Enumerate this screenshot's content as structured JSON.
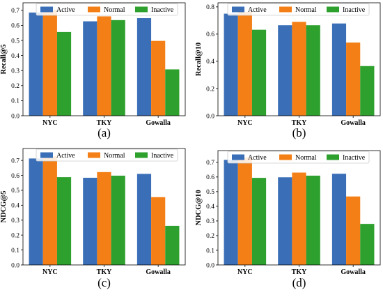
{
  "colors": {
    "Active": "#3a6fb8",
    "Normal": "#f47f16",
    "Inactive": "#2ea02e"
  },
  "chart_data": [
    {
      "type": "bar",
      "caption": "(a)",
      "ylabel": "Recall@5",
      "categories": [
        "NYC",
        "TKY",
        "Gowalla"
      ],
      "ylim": [
        0,
        0.75
      ],
      "yticks": [
        0.0,
        0.1,
        0.2,
        0.3,
        0.4,
        0.5,
        0.6,
        0.7
      ],
      "legend": {
        "placement": "top",
        "entries": [
          "Active",
          "Normal",
          "Inactive"
        ]
      },
      "series": [
        {
          "name": "Active",
          "values": [
            0.685,
            0.627,
            0.648
          ],
          "color": "#3a6fb8"
        },
        {
          "name": "Normal",
          "values": [
            0.702,
            0.66,
            0.497
          ],
          "color": "#f47f16"
        },
        {
          "name": "Inactive",
          "values": [
            0.556,
            0.635,
            0.308
          ],
          "color": "#2ea02e"
        }
      ]
    },
    {
      "type": "bar",
      "caption": "(b)",
      "ylabel": "Recall@10",
      "categories": [
        "NYC",
        "TKY",
        "Gowalla"
      ],
      "ylim": [
        0,
        0.83
      ],
      "yticks": [
        0.0,
        0.2,
        0.4,
        0.6,
        0.8
      ],
      "legend": {
        "placement": "top",
        "entries": [
          "Active",
          "Normal",
          "Inactive"
        ]
      },
      "series": [
        {
          "name": "Active",
          "values": [
            0.75,
            0.665,
            0.678
          ],
          "color": "#3a6fb8"
        },
        {
          "name": "Normal",
          "values": [
            0.763,
            0.69,
            0.538
          ],
          "color": "#f47f16"
        },
        {
          "name": "Inactive",
          "values": [
            0.632,
            0.665,
            0.365
          ],
          "color": "#2ea02e"
        }
      ]
    },
    {
      "type": "bar",
      "caption": "(c)",
      "ylabel": "NDCG@5",
      "categories": [
        "NYC",
        "TKY",
        "Gowalla"
      ],
      "ylim": [
        0,
        0.78
      ],
      "yticks": [
        0.0,
        0.1,
        0.2,
        0.3,
        0.4,
        0.5,
        0.6,
        0.7
      ],
      "legend": {
        "placement": "top",
        "entries": [
          "Active",
          "Normal",
          "Inactive"
        ]
      },
      "series": [
        {
          "name": "Active",
          "values": [
            0.713,
            0.584,
            0.61
          ],
          "color": "#3a6fb8"
        },
        {
          "name": "Normal",
          "values": [
            0.727,
            0.622,
            0.454
          ],
          "color": "#f47f16"
        },
        {
          "name": "Inactive",
          "values": [
            0.588,
            0.598,
            0.262
          ],
          "color": "#2ea02e"
        }
      ]
    },
    {
      "type": "bar",
      "caption": "(d)",
      "ylabel": "NDCG@10",
      "categories": [
        "NYC",
        "TKY",
        "Gowalla"
      ],
      "ylim": [
        0,
        0.78
      ],
      "yticks": [
        0.0,
        0.1,
        0.2,
        0.3,
        0.4,
        0.5,
        0.6,
        0.7
      ],
      "legend": {
        "placement": "top",
        "entries": [
          "Active",
          "Normal",
          "Inactive"
        ]
      },
      "series": [
        {
          "name": "Active",
          "values": [
            0.717,
            0.598,
            0.622
          ],
          "color": "#3a6fb8"
        },
        {
          "name": "Normal",
          "values": [
            0.733,
            0.63,
            0.467
          ],
          "color": "#f47f16"
        },
        {
          "name": "Inactive",
          "values": [
            0.594,
            0.609,
            0.28
          ],
          "color": "#2ea02e"
        }
      ]
    }
  ]
}
